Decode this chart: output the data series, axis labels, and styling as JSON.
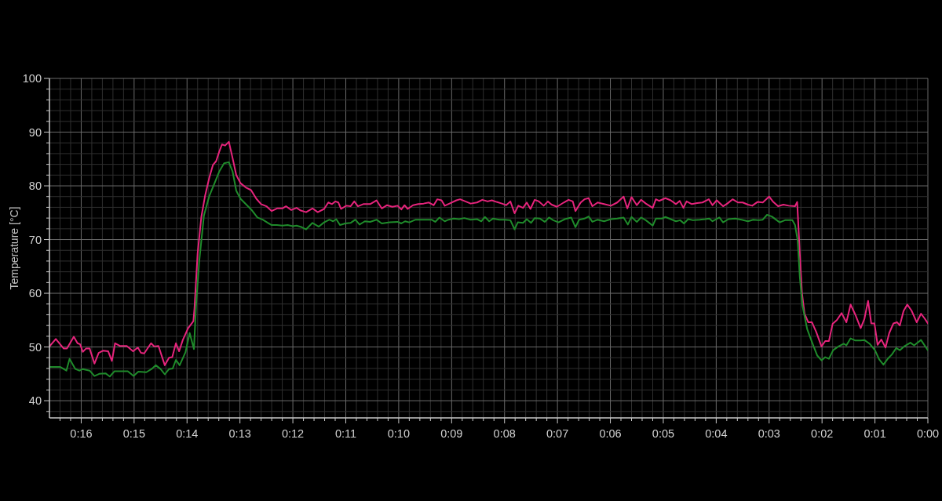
{
  "chart_data": {
    "type": "line",
    "ylabel": "Temperature [°C]",
    "grid": true,
    "xlim": [
      16.6,
      0
    ],
    "xticks": [
      {
        "value": 16.4,
        "label": null
      },
      {
        "value": 16.2,
        "label": null
      },
      {
        "value": 16,
        "label": "0:16"
      },
      {
        "value": 15.8,
        "label": null
      },
      {
        "value": 15.6,
        "label": null
      },
      {
        "value": 15.4,
        "label": null
      },
      {
        "value": 15.2,
        "label": null
      },
      {
        "value": 15,
        "label": "0:15"
      },
      {
        "value": 14.8,
        "label": null
      },
      {
        "value": 14.6,
        "label": null
      },
      {
        "value": 14.4,
        "label": null
      },
      {
        "value": 14.2,
        "label": null
      },
      {
        "value": 14,
        "label": "0:14"
      },
      {
        "value": 13.8,
        "label": null
      },
      {
        "value": 13.6,
        "label": null
      },
      {
        "value": 13.4,
        "label": null
      },
      {
        "value": 13.2,
        "label": null
      },
      {
        "value": 13,
        "label": "0:13"
      },
      {
        "value": 12.8,
        "label": null
      },
      {
        "value": 12.6,
        "label": null
      },
      {
        "value": 12.4,
        "label": null
      },
      {
        "value": 12.2,
        "label": null
      },
      {
        "value": 12,
        "label": "0:12"
      },
      {
        "value": 11.8,
        "label": null
      },
      {
        "value": 11.6,
        "label": null
      },
      {
        "value": 11.4,
        "label": null
      },
      {
        "value": 11.2,
        "label": null
      },
      {
        "value": 11,
        "label": "0:11"
      },
      {
        "value": 10.8,
        "label": null
      },
      {
        "value": 10.6,
        "label": null
      },
      {
        "value": 10.4,
        "label": null
      },
      {
        "value": 10.2,
        "label": null
      },
      {
        "value": 10,
        "label": "0:10"
      },
      {
        "value": 9.8,
        "label": null
      },
      {
        "value": 9.6,
        "label": null
      },
      {
        "value": 9.4,
        "label": null
      },
      {
        "value": 9.2,
        "label": null
      },
      {
        "value": 9,
        "label": "0:09"
      },
      {
        "value": 8.8,
        "label": null
      },
      {
        "value": 8.6,
        "label": null
      },
      {
        "value": 8.4,
        "label": null
      },
      {
        "value": 8.2,
        "label": null
      },
      {
        "value": 8,
        "label": "0:08"
      },
      {
        "value": 7.8,
        "label": null
      },
      {
        "value": 7.6,
        "label": null
      },
      {
        "value": 7.4,
        "label": null
      },
      {
        "value": 7.2,
        "label": null
      },
      {
        "value": 7,
        "label": "0:07"
      },
      {
        "value": 6.8,
        "label": null
      },
      {
        "value": 6.6,
        "label": null
      },
      {
        "value": 6.4,
        "label": null
      },
      {
        "value": 6.2,
        "label": null
      },
      {
        "value": 6,
        "label": "0:06"
      },
      {
        "value": 5.8,
        "label": null
      },
      {
        "value": 5.6,
        "label": null
      },
      {
        "value": 5.4,
        "label": null
      },
      {
        "value": 5.2,
        "label": null
      },
      {
        "value": 5,
        "label": "0:05"
      },
      {
        "value": 4.8,
        "label": null
      },
      {
        "value": 4.6,
        "label": null
      },
      {
        "value": 4.4,
        "label": null
      },
      {
        "value": 4.2,
        "label": null
      },
      {
        "value": 4,
        "label": "0:04"
      },
      {
        "value": 3.8,
        "label": null
      },
      {
        "value": 3.6,
        "label": null
      },
      {
        "value": 3.4,
        "label": null
      },
      {
        "value": 3.2,
        "label": null
      },
      {
        "value": 3,
        "label": "0:03"
      },
      {
        "value": 2.8,
        "label": null
      },
      {
        "value": 2.6,
        "label": null
      },
      {
        "value": 2.4,
        "label": null
      },
      {
        "value": 2.2,
        "label": null
      },
      {
        "value": 2,
        "label": "0:02"
      },
      {
        "value": 1.8,
        "label": null
      },
      {
        "value": 1.6,
        "label": null
      },
      {
        "value": 1.4,
        "label": null
      },
      {
        "value": 1.2,
        "label": null
      },
      {
        "value": 1,
        "label": "0:01"
      },
      {
        "value": 0.8,
        "label": null
      },
      {
        "value": 0.6,
        "label": null
      },
      {
        "value": 0.4,
        "label": null
      },
      {
        "value": 0.2,
        "label": null
      },
      {
        "value": 0,
        "label": "0:00"
      }
    ],
    "ylim": [
      36.8,
      100
    ],
    "yticks": [
      {
        "value": 38,
        "label": null
      },
      40,
      {
        "value": 42,
        "label": null
      },
      {
        "value": 44,
        "label": null
      },
      {
        "value": 46,
        "label": null
      },
      {
        "value": 48,
        "label": null
      },
      50,
      {
        "value": 52,
        "label": null
      },
      {
        "value": 54,
        "label": null
      },
      {
        "value": 56,
        "label": null
      },
      {
        "value": 58,
        "label": null
      },
      60,
      {
        "value": 62,
        "label": null
      },
      {
        "value": 64,
        "label": null
      },
      {
        "value": 66,
        "label": null
      },
      {
        "value": 68,
        "label": null
      },
      70,
      {
        "value": 72,
        "label": null
      },
      {
        "value": 74,
        "label": null
      },
      {
        "value": 76,
        "label": null
      },
      {
        "value": 78,
        "label": null
      },
      80,
      {
        "value": 82,
        "label": null
      },
      {
        "value": 84,
        "label": null
      },
      {
        "value": 86,
        "label": null
      },
      {
        "value": 88,
        "label": null
      },
      90,
      {
        "value": 92,
        "label": null
      },
      {
        "value": 94,
        "label": null
      },
      {
        "value": 96,
        "label": null
      },
      {
        "value": 98,
        "label": null
      },
      100
    ],
    "series": [
      {
        "color": "#e6247c",
        "x": [
          16.6,
          16.48,
          16.33,
          16.27,
          16.14,
          16.07,
          16.02,
          15.97,
          15.91,
          15.84,
          15.75,
          15.67,
          15.59,
          15.49,
          15.42,
          15.36,
          15.27,
          15.14,
          15.02,
          14.93,
          14.87,
          14.81,
          14.68,
          14.62,
          14.54,
          14.42,
          14.34,
          14.28,
          14.21,
          14.15,
          14.08,
          13.98,
          13.88,
          13.86,
          13.8,
          13.73,
          13.66,
          13.58,
          13.51,
          13.45,
          13.39,
          13.34,
          13.28,
          13.21,
          13.14,
          13.07,
          12.99,
          12.89,
          12.79,
          12.69,
          12.6,
          12.5,
          12.4,
          12.3,
          12.2,
          12.13,
          12.03,
          11.93,
          11.85,
          11.75,
          11.63,
          11.53,
          11.41,
          11.33,
          11.26,
          11.2,
          11.14,
          11.09,
          10.99,
          10.91,
          10.84,
          10.77,
          10.67,
          10.54,
          10.42,
          10.32,
          10.22,
          10.12,
          10.02,
          9.95,
          9.89,
          9.83,
          9.73,
          9.63,
          9.53,
          9.43,
          9.34,
          9.27,
          9.19,
          9.13,
          9.04,
          8.91,
          8.84,
          8.74,
          8.64,
          8.52,
          8.42,
          8.32,
          8.24,
          8.15,
          8.05,
          7.97,
          7.89,
          7.81,
          7.74,
          7.65,
          7.58,
          7.51,
          7.43,
          7.35,
          7.26,
          7.18,
          7.11,
          7.01,
          6.88,
          6.79,
          6.71,
          6.66,
          6.56,
          6.49,
          6.41,
          6.34,
          6.24,
          6.12,
          5.99,
          5.87,
          5.75,
          5.68,
          5.6,
          5.5,
          5.42,
          5.33,
          5.2,
          5.14,
          5.08,
          4.96,
          4.86,
          4.76,
          4.69,
          4.62,
          4.56,
          4.46,
          4.36,
          4.26,
          4.14,
          4.07,
          3.99,
          3.87,
          3.79,
          3.69,
          3.59,
          3.5,
          3.4,
          3.32,
          3.22,
          3.12,
          3.0,
          2.93,
          2.83,
          2.73,
          2.63,
          2.51,
          2.47,
          2.45,
          2.42,
          2.38,
          2.33,
          2.26,
          2.19,
          2.11,
          2.01,
          1.94,
          1.87,
          1.8,
          1.72,
          1.63,
          1.54,
          1.46,
          1.37,
          1.27,
          1.2,
          1.13,
          1.07,
          1.01,
          0.95,
          0.88,
          0.8,
          0.73,
          0.65,
          0.58,
          0.53,
          0.46,
          0.39,
          0.31,
          0.21,
          0.13,
          0.06,
          0
        ],
        "values": [
          50.1,
          51.5,
          49.7,
          49.7,
          51.9,
          50.7,
          50.5,
          49.1,
          49.7,
          49.7,
          46.9,
          48.9,
          49.3,
          49.2,
          47.4,
          50.7,
          50.2,
          50.2,
          49.2,
          49.9,
          48.9,
          48.8,
          50.7,
          50.1,
          50.2,
          46.6,
          48.0,
          48.1,
          50.7,
          49.2,
          51.3,
          53.5,
          54.8,
          57.1,
          67.4,
          74.2,
          78.1,
          81.5,
          83.9,
          84.6,
          86.4,
          87.7,
          87.5,
          88.2,
          85.2,
          82.0,
          80.5,
          79.7,
          79.2,
          77.6,
          76.6,
          76.2,
          75.3,
          75.8,
          75.8,
          76.2,
          75.5,
          75.9,
          75.4,
          75.1,
          75.8,
          75.1,
          75.7,
          76.9,
          76.6,
          77.1,
          76.9,
          75.7,
          76.3,
          76.2,
          77.1,
          76.2,
          76.6,
          76.6,
          77.3,
          75.8,
          76.4,
          76.1,
          76.3,
          75.6,
          76.4,
          75.7,
          76.4,
          76.6,
          76.7,
          76.9,
          76.4,
          77.5,
          77.3,
          76.3,
          76.7,
          77.3,
          77.5,
          77.1,
          76.7,
          76.9,
          77.4,
          77.1,
          77.3,
          77.0,
          76.7,
          76.4,
          77.1,
          74.9,
          76.3,
          75.9,
          76.9,
          75.7,
          77.4,
          77.1,
          76.3,
          77.1,
          76.5,
          76.1,
          76.9,
          77.4,
          77.1,
          75.3,
          76.9,
          77.5,
          77.7,
          76.2,
          76.9,
          76.6,
          76.3,
          76.9,
          78.0,
          75.8,
          77.9,
          76.4,
          77.4,
          76.7,
          75.9,
          77.5,
          77.2,
          77.7,
          77.3,
          76.6,
          77.2,
          75.9,
          77.1,
          76.6,
          76.8,
          76.9,
          77.5,
          76.4,
          77.3,
          76.2,
          76.7,
          77.5,
          76.9,
          76.9,
          76.5,
          76.3,
          77.0,
          76.9,
          78.0,
          77.1,
          76.2,
          76.5,
          76.3,
          76.2,
          77.0,
          73.2,
          67.4,
          60.1,
          56.2,
          54.6,
          54.6,
          52.8,
          50.1,
          51.1,
          51.1,
          54.3,
          55.0,
          56.3,
          54.6,
          57.9,
          56.0,
          53.5,
          55.2,
          58.6,
          54.4,
          54.4,
          50.4,
          51.4,
          49.9,
          52.6,
          54.4,
          54.6,
          54.0,
          56.7,
          57.9,
          56.8,
          54.6,
          56.2,
          55.3,
          54.4
        ]
      },
      {
        "color": "#1f8b2b",
        "x": [
          16.6,
          16.4,
          16.28,
          16.22,
          16.11,
          16.03,
          15.97,
          15.84,
          15.75,
          15.66,
          15.54,
          15.46,
          15.37,
          15.24,
          15.12,
          15.01,
          14.92,
          14.77,
          14.67,
          14.59,
          14.5,
          14.42,
          14.34,
          14.27,
          14.21,
          14.14,
          14.03,
          13.95,
          13.87,
          13.83,
          13.77,
          13.68,
          13.58,
          13.48,
          13.39,
          13.3,
          13.21,
          13.14,
          13.07,
          12.99,
          12.89,
          12.77,
          12.67,
          12.57,
          12.47,
          12.4,
          12.3,
          12.2,
          12.1,
          12.0,
          11.93,
          11.83,
          11.75,
          11.63,
          11.51,
          11.41,
          11.31,
          11.24,
          11.18,
          11.11,
          11.01,
          10.91,
          10.82,
          10.74,
          10.64,
          10.54,
          10.42,
          10.32,
          10.17,
          10.02,
          9.95,
          9.88,
          9.8,
          9.68,
          9.53,
          9.38,
          9.31,
          9.23,
          9.13,
          9.06,
          8.96,
          8.86,
          8.76,
          8.64,
          8.52,
          8.44,
          8.37,
          8.29,
          8.22,
          8.1,
          8.0,
          7.89,
          7.81,
          7.75,
          7.65,
          7.58,
          7.5,
          7.43,
          7.33,
          7.24,
          7.16,
          7.08,
          6.98,
          6.86,
          6.74,
          6.66,
          6.59,
          6.49,
          6.41,
          6.34,
          6.24,
          6.12,
          5.99,
          5.87,
          5.75,
          5.67,
          5.6,
          5.5,
          5.42,
          5.33,
          5.2,
          5.14,
          5.03,
          4.96,
          4.86,
          4.76,
          4.68,
          4.61,
          4.53,
          4.44,
          4.31,
          4.21,
          4.13,
          4.07,
          3.94,
          3.87,
          3.77,
          3.64,
          3.52,
          3.4,
          3.3,
          3.2,
          3.12,
          3.04,
          2.95,
          2.8,
          2.7,
          2.56,
          2.51,
          2.46,
          2.42,
          2.37,
          2.28,
          2.19,
          2.09,
          2.01,
          1.94,
          1.87,
          1.79,
          1.69,
          1.59,
          1.54,
          1.46,
          1.37,
          1.27,
          1.2,
          1.1,
          1.0,
          0.92,
          0.84,
          0.75,
          0.68,
          0.6,
          0.53,
          0.45,
          0.33,
          0.26,
          0.13,
          0
        ],
        "values": [
          46.3,
          46.3,
          45.6,
          47.8,
          45.9,
          45.6,
          45.9,
          45.6,
          44.6,
          45.0,
          45.1,
          44.5,
          45.5,
          45.5,
          45.5,
          44.6,
          45.4,
          45.3,
          45.9,
          46.6,
          45.9,
          44.9,
          45.9,
          46.0,
          47.6,
          46.6,
          49.0,
          52.6,
          49.6,
          57.7,
          65.9,
          74.5,
          78.1,
          80.5,
          82.7,
          84.2,
          84.4,
          82.7,
          79.1,
          77.6,
          76.6,
          75.4,
          74.1,
          73.7,
          73.1,
          72.7,
          72.7,
          72.6,
          72.7,
          72.5,
          72.6,
          72.3,
          71.9,
          73.1,
          72.4,
          73.2,
          73.7,
          73.4,
          73.8,
          72.7,
          73.0,
          73.1,
          73.7,
          72.8,
          73.4,
          73.3,
          73.7,
          73.0,
          73.2,
          73.3,
          73.0,
          73.4,
          73.2,
          73.7,
          73.7,
          73.7,
          73.3,
          74.1,
          73.4,
          73.7,
          73.9,
          73.8,
          74.0,
          73.7,
          73.8,
          73.4,
          74.2,
          73.4,
          73.9,
          73.7,
          73.7,
          73.6,
          71.9,
          73.2,
          73.1,
          73.8,
          73.1,
          74.0,
          73.9,
          73.3,
          74.1,
          73.6,
          73.2,
          73.8,
          74.1,
          72.3,
          73.7,
          73.9,
          74.3,
          73.3,
          73.7,
          73.4,
          73.8,
          73.9,
          74.1,
          72.8,
          74.2,
          73.3,
          74.1,
          73.6,
          72.6,
          73.9,
          73.9,
          74.2,
          73.8,
          73.4,
          73.6,
          73.0,
          73.8,
          73.6,
          73.7,
          73.8,
          73.9,
          73.4,
          74.1,
          73.2,
          73.8,
          73.9,
          73.7,
          73.4,
          73.7,
          73.6,
          73.7,
          74.6,
          74.3,
          73.2,
          73.6,
          73.6,
          72.7,
          69.8,
          63.0,
          57.7,
          53.3,
          50.9,
          48.4,
          47.5,
          48.1,
          47.8,
          49.4,
          50.1,
          50.6,
          50.3,
          51.6,
          51.2,
          51.2,
          51.3,
          50.6,
          49.4,
          47.7,
          46.7,
          47.9,
          48.6,
          49.8,
          49.4,
          50.1,
          50.8,
          50.3,
          51.3,
          49.4
        ]
      }
    ]
  }
}
